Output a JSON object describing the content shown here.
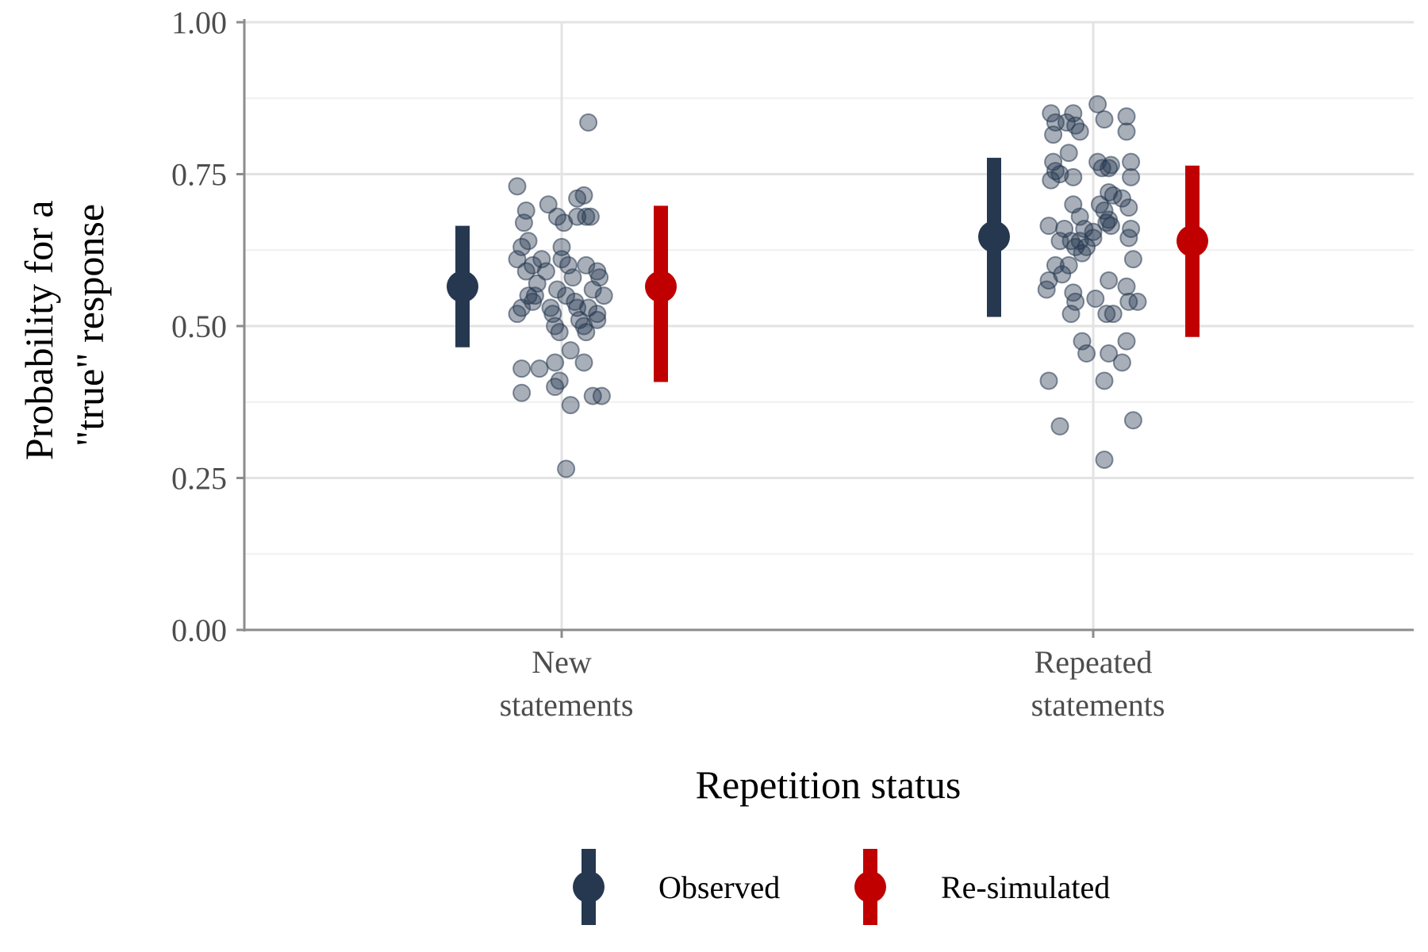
{
  "chart_data": {
    "type": "scatter",
    "xlabel": "Repetition status",
    "ylabel_lines": [
      "Probability for a",
      "\"true\" response"
    ],
    "categories": [
      {
        "name": "new",
        "label_lines": [
          "New",
          "statements"
        ]
      },
      {
        "name": "repeated",
        "label_lines": [
          "Repeated",
          "statements"
        ]
      }
    ],
    "ylim": [
      0,
      1
    ],
    "yticks": [
      "0.00",
      "0.25",
      "0.50",
      "0.75",
      "1.00"
    ],
    "ytick_values": [
      0,
      0.25,
      0.5,
      0.75,
      1
    ],
    "y_minor_gridlines": [
      0.125,
      0.375,
      0.625,
      0.875
    ],
    "grid": true,
    "legend_placement": "bottom",
    "series": [
      {
        "name": "Observed",
        "color": "#263850",
        "points": [
          {
            "category": "new",
            "estimate": 0.565,
            "lower": 0.465,
            "upper": 0.665
          },
          {
            "category": "repeated",
            "estimate": 0.647,
            "lower": 0.515,
            "upper": 0.777
          }
        ]
      },
      {
        "name": "Re-simulated",
        "color": "#c00000",
        "points": [
          {
            "category": "new",
            "estimate": 0.565,
            "lower": 0.408,
            "upper": 0.698
          },
          {
            "category": "repeated",
            "estimate": 0.64,
            "lower": 0.482,
            "upper": 0.764
          }
        ]
      }
    ],
    "raw_points": {
      "color": "#263850",
      "opacity": 0.4,
      "new": [
        [
          -0.1,
          0.73
        ],
        [
          -0.08,
          0.69
        ],
        [
          -0.085,
          0.67
        ],
        [
          -0.09,
          0.63
        ],
        [
          -0.1,
          0.61
        ],
        [
          -0.075,
          0.64
        ],
        [
          -0.065,
          0.6
        ],
        [
          -0.08,
          0.59
        ],
        [
          -0.055,
          0.57
        ],
        [
          -0.075,
          0.55
        ],
        [
          -0.065,
          0.54
        ],
        [
          -0.09,
          0.53
        ],
        [
          -0.1,
          0.52
        ],
        [
          -0.06,
          0.55
        ],
        [
          -0.045,
          0.61
        ],
        [
          -0.035,
          0.59
        ],
        [
          -0.025,
          0.53
        ],
        [
          -0.015,
          0.5
        ],
        [
          -0.005,
          0.49
        ],
        [
          -0.03,
          0.7
        ],
        [
          -0.01,
          0.68
        ],
        [
          0.005,
          0.67
        ],
        [
          0.0,
          0.63
        ],
        [
          0.0,
          0.61
        ],
        [
          0.015,
          0.6
        ],
        [
          0.025,
          0.58
        ],
        [
          0.01,
          0.55
        ],
        [
          -0.01,
          0.56
        ],
        [
          -0.02,
          0.52
        ],
        [
          0.03,
          0.54
        ],
        [
          0.035,
          0.53
        ],
        [
          0.04,
          0.51
        ],
        [
          0.05,
          0.5
        ],
        [
          0.055,
          0.49
        ],
        [
          0.035,
          0.71
        ],
        [
          0.05,
          0.715
        ],
        [
          0.035,
          0.68
        ],
        [
          0.055,
          0.68
        ],
        [
          0.065,
          0.68
        ],
        [
          0.055,
          0.6
        ],
        [
          0.07,
          0.56
        ],
        [
          0.08,
          0.59
        ],
        [
          0.085,
          0.58
        ],
        [
          0.095,
          0.55
        ],
        [
          0.06,
          0.53
        ],
        [
          0.08,
          0.51
        ],
        [
          -0.09,
          0.43
        ],
        [
          -0.05,
          0.43
        ],
        [
          -0.015,
          0.44
        ],
        [
          -0.015,
          0.4
        ],
        [
          -0.005,
          0.41
        ],
        [
          -0.09,
          0.39
        ],
        [
          0.02,
          0.46
        ],
        [
          0.05,
          0.44
        ],
        [
          0.02,
          0.37
        ],
        [
          0.07,
          0.385
        ],
        [
          0.09,
          0.385
        ],
        [
          0.01,
          0.265
        ],
        [
          0.06,
          0.835
        ],
        [
          0.08,
          0.52
        ]
      ],
      "repeated": [
        [
          -0.095,
          0.85
        ],
        [
          -0.085,
          0.835
        ],
        [
          -0.09,
          0.815
        ],
        [
          -0.06,
          0.835
        ],
        [
          -0.045,
          0.85
        ],
        [
          -0.04,
          0.83
        ],
        [
          -0.03,
          0.82
        ],
        [
          0.01,
          0.865
        ],
        [
          0.025,
          0.84
        ],
        [
          0.075,
          0.845
        ],
        [
          0.075,
          0.82
        ],
        [
          -0.09,
          0.77
        ],
        [
          -0.085,
          0.755
        ],
        [
          -0.095,
          0.74
        ],
        [
          -0.075,
          0.75
        ],
        [
          -0.055,
          0.785
        ],
        [
          -0.045,
          0.745
        ],
        [
          0.01,
          0.77
        ],
        [
          0.02,
          0.76
        ],
        [
          0.035,
          0.76
        ],
        [
          0.04,
          0.765
        ],
        [
          0.085,
          0.77
        ],
        [
          0.085,
          0.745
        ],
        [
          -0.045,
          0.7
        ],
        [
          -0.03,
          0.68
        ],
        [
          -0.02,
          0.66
        ],
        [
          -0.03,
          0.64
        ],
        [
          -0.04,
          0.63
        ],
        [
          -0.05,
          0.64
        ],
        [
          -0.065,
          0.66
        ],
        [
          -0.075,
          0.64
        ],
        [
          -0.1,
          0.665
        ],
        [
          -0.025,
          0.62
        ],
        [
          -0.015,
          0.63
        ],
        [
          0.0,
          0.645
        ],
        [
          0.0,
          0.655
        ],
        [
          0.015,
          0.7
        ],
        [
          0.025,
          0.69
        ],
        [
          0.03,
          0.67
        ],
        [
          0.035,
          0.675
        ],
        [
          0.04,
          0.665
        ],
        [
          0.035,
          0.72
        ],
        [
          0.045,
          0.715
        ],
        [
          0.065,
          0.71
        ],
        [
          0.08,
          0.695
        ],
        [
          0.085,
          0.66
        ],
        [
          0.08,
          0.645
        ],
        [
          0.09,
          0.61
        ],
        [
          -0.1,
          0.575
        ],
        [
          -0.085,
          0.6
        ],
        [
          -0.07,
          0.585
        ],
        [
          -0.055,
          0.6
        ],
        [
          -0.105,
          0.56
        ],
        [
          -0.045,
          0.555
        ],
        [
          -0.04,
          0.54
        ],
        [
          -0.05,
          0.52
        ],
        [
          0.005,
          0.545
        ],
        [
          0.03,
          0.52
        ],
        [
          0.045,
          0.52
        ],
        [
          0.035,
          0.575
        ],
        [
          0.075,
          0.565
        ],
        [
          0.08,
          0.54
        ],
        [
          0.1,
          0.54
        ],
        [
          -0.025,
          0.475
        ],
        [
          -0.015,
          0.455
        ],
        [
          0.025,
          0.41
        ],
        [
          0.035,
          0.455
        ],
        [
          0.065,
          0.44
        ],
        [
          0.075,
          0.475
        ],
        [
          -0.1,
          0.41
        ],
        [
          -0.075,
          0.335
        ],
        [
          0.09,
          0.345
        ],
        [
          0.025,
          0.28
        ]
      ]
    }
  }
}
